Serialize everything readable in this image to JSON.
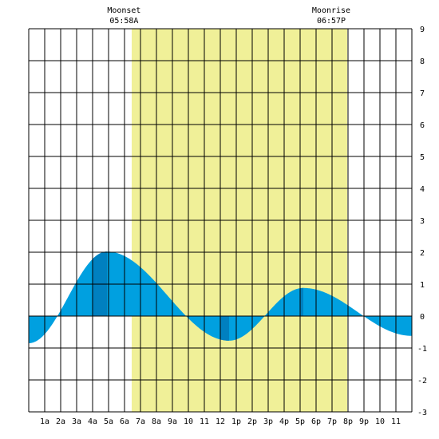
{
  "chart_data": {
    "type": "area",
    "title": "",
    "xlabel": "",
    "ylabel": "",
    "x_range_hours": [
      0,
      24
    ],
    "ylim": [
      -3,
      9
    ],
    "y_ticks": [
      "-3",
      "-2",
      "-1",
      "0",
      "1",
      "2",
      "3",
      "4",
      "5",
      "6",
      "7",
      "8",
      "9"
    ],
    "x_ticks": [
      {
        "hour": 1,
        "label": "1a"
      },
      {
        "hour": 2,
        "label": "2a"
      },
      {
        "hour": 3,
        "label": "3a"
      },
      {
        "hour": 4,
        "label": "4a"
      },
      {
        "hour": 5,
        "label": "5a"
      },
      {
        "hour": 6,
        "label": "6a"
      },
      {
        "hour": 7,
        "label": "7a"
      },
      {
        "hour": 8,
        "label": "8a"
      },
      {
        "hour": 9,
        "label": "9a"
      },
      {
        "hour": 10,
        "label": "10"
      },
      {
        "hour": 11,
        "label": "11"
      },
      {
        "hour": 12,
        "label": "12"
      },
      {
        "hour": 13,
        "label": "1p"
      },
      {
        "hour": 14,
        "label": "2p"
      },
      {
        "hour": 15,
        "label": "3p"
      },
      {
        "hour": 16,
        "label": "4p"
      },
      {
        "hour": 17,
        "label": "5p"
      },
      {
        "hour": 18,
        "label": "6p"
      },
      {
        "hour": 19,
        "label": "7p"
      },
      {
        "hour": 20,
        "label": "8p"
      },
      {
        "hour": 21,
        "label": "9p"
      },
      {
        "hour": 22,
        "label": "10"
      },
      {
        "hour": 23,
        "label": "11"
      }
    ],
    "grid": true,
    "daylight": {
      "start_hour": 6.45,
      "end_hour": 19.95
    },
    "annotations": [
      {
        "label": "Moonset",
        "time": "05:58A",
        "hour": 5.97
      },
      {
        "label": "Moonrise",
        "time": "06:57P",
        "hour": 18.95
      }
    ],
    "tide_extrema": [
      {
        "hour": 0.0,
        "value": -0.85
      },
      {
        "hour": 4.9,
        "value": 2.02
      },
      {
        "hour": 12.55,
        "value": -0.77
      },
      {
        "hour": 17.2,
        "value": 0.88
      },
      {
        "hour": 24.0,
        "value": -0.62
      }
    ],
    "colors": {
      "daylight": "#f0f098",
      "tide_fill": "#00a0e0",
      "tide_dark": "#0080c0",
      "grid": "#000000"
    }
  }
}
